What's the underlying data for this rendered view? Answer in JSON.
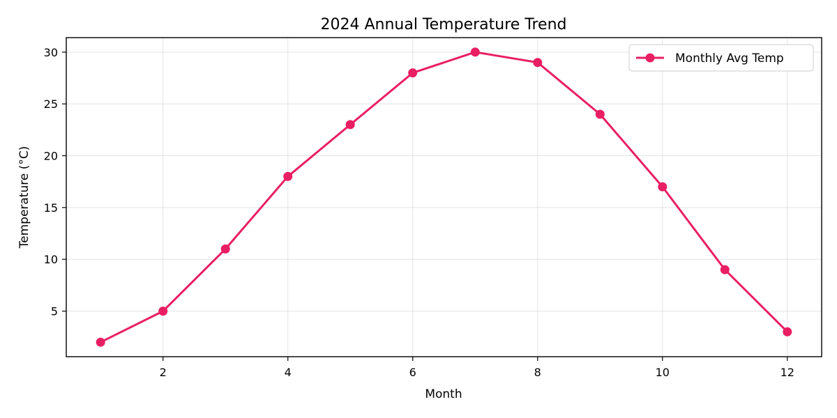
{
  "chart_data": {
    "type": "line",
    "title": "2024 Annual Temperature Trend",
    "xlabel": "Month",
    "ylabel": "Temperature (°C)",
    "x": [
      1,
      2,
      3,
      4,
      5,
      6,
      7,
      8,
      9,
      10,
      11,
      12
    ],
    "series": [
      {
        "name": "Monthly Avg Temp",
        "values": [
          2,
          5,
          11,
          18,
          23,
          28,
          30,
          29,
          24,
          17,
          9,
          3
        ],
        "color": "#e91e63",
        "marker": "circle"
      }
    ],
    "xlim": [
      0.45,
      12.55
    ],
    "ylim": [
      0.6,
      31.4
    ],
    "xticks": [
      2,
      4,
      6,
      8,
      10,
      12
    ],
    "yticks": [
      5,
      10,
      15,
      20,
      25,
      30
    ],
    "grid": true,
    "legend_position": "top-right"
  }
}
